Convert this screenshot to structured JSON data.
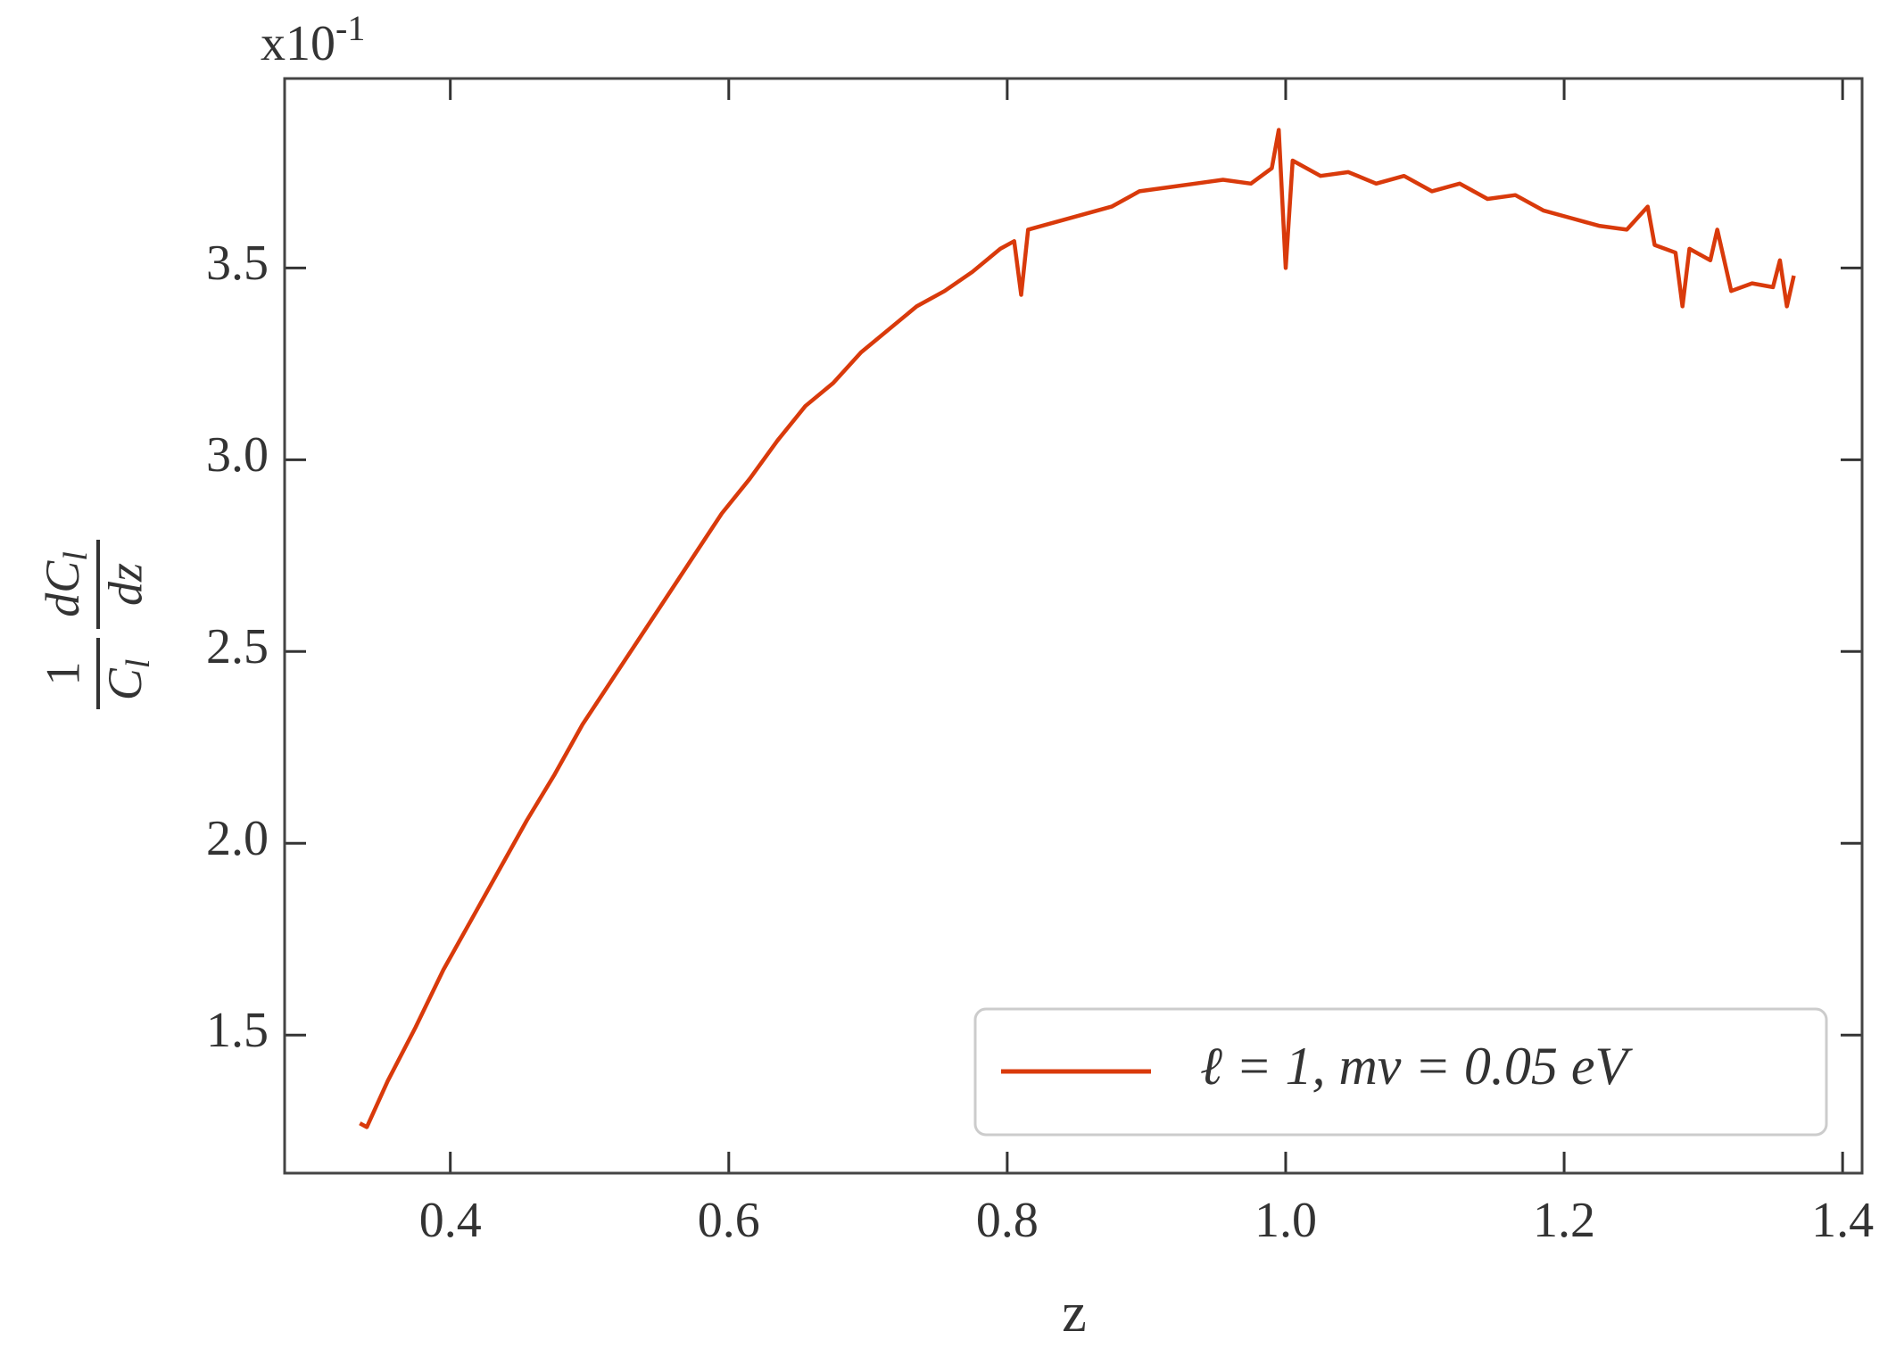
{
  "chart_data": {
    "type": "line",
    "offset_label": {
      "base": "x10",
      "exponent": "-1"
    },
    "xlabel": "z",
    "ylabel": {
      "left_numerator": "1",
      "left_denominator": "C",
      "left_denominator_sub": "l",
      "right_numerator": "dC",
      "right_numerator_sub": "l",
      "right_denominator": "dz"
    },
    "xlim": [
      0.281,
      1.414
    ],
    "ylim": [
      1.14,
      3.994
    ],
    "xticks": [
      0.4,
      0.6,
      0.8,
      {
        "value": 1.0,
        "label": "1.0"
      },
      1.2,
      1.4
    ],
    "yticks": [
      1.5,
      {
        "value": 2.0,
        "label": "2.0"
      },
      2.5,
      {
        "value": 3.0,
        "label": "3.0"
      },
      3.5
    ],
    "legend": "lower right",
    "x": [
      0.335,
      0.34,
      0.355,
      0.375,
      0.395,
      0.415,
      0.435,
      0.455,
      0.475,
      0.495,
      0.515,
      0.535,
      0.555,
      0.575,
      0.595,
      0.615,
      0.635,
      0.655,
      0.675,
      0.695,
      0.715,
      0.735,
      0.755,
      0.775,
      0.795,
      0.805,
      0.81,
      0.815,
      0.835,
      0.855,
      0.875,
      0.895,
      0.915,
      0.935,
      0.955,
      0.975,
      0.99,
      0.995,
      1.0,
      1.005,
      1.025,
      1.045,
      1.065,
      1.085,
      1.105,
      1.125,
      1.145,
      1.165,
      1.185,
      1.205,
      1.225,
      1.245,
      1.26,
      1.265,
      1.28,
      1.285,
      1.29,
      1.305,
      1.31,
      1.32,
      1.335,
      1.35,
      1.355,
      1.36,
      1.365
    ],
    "series": [
      {
        "name": "ℓ = 1, mν = 0.05 eV",
        "color": "#d93a0b",
        "values": [
          1.27,
          1.26,
          1.38,
          1.52,
          1.67,
          1.8,
          1.93,
          2.06,
          2.18,
          2.31,
          2.42,
          2.53,
          2.64,
          2.75,
          2.86,
          2.95,
          3.05,
          3.14,
          3.2,
          3.28,
          3.34,
          3.4,
          3.44,
          3.49,
          3.55,
          3.57,
          3.43,
          3.6,
          3.62,
          3.64,
          3.66,
          3.7,
          3.71,
          3.72,
          3.73,
          3.72,
          3.76,
          3.86,
          3.5,
          3.78,
          3.74,
          3.75,
          3.72,
          3.74,
          3.7,
          3.72,
          3.68,
          3.69,
          3.65,
          3.63,
          3.61,
          3.6,
          3.66,
          3.56,
          3.54,
          3.4,
          3.55,
          3.52,
          3.6,
          3.44,
          3.46,
          3.45,
          3.52,
          3.4,
          3.48
        ]
      }
    ]
  }
}
